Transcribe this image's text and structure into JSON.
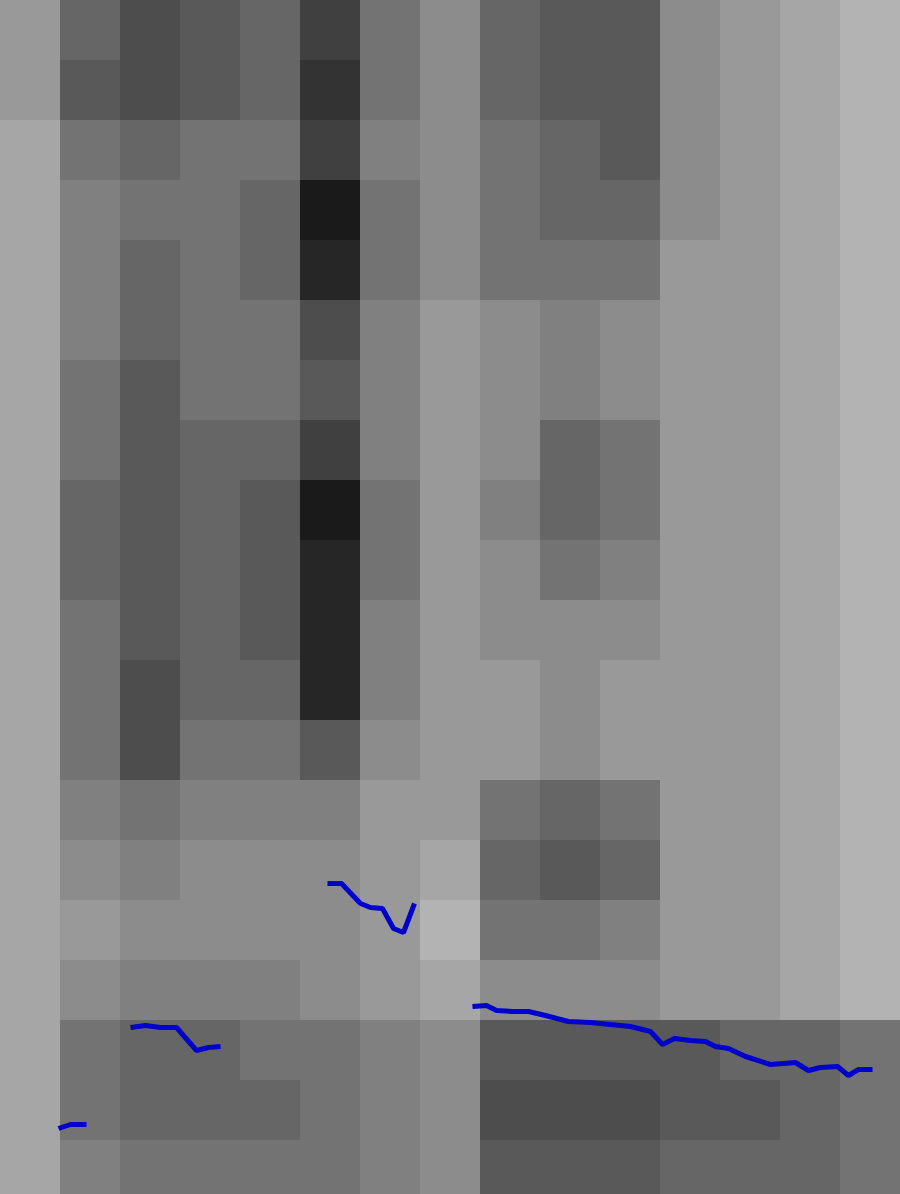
{
  "chart_data": {
    "type": "spectrogram",
    "tick_labels": false,
    "xlim": [
      0,
      900
    ],
    "ylim": [
      0,
      1194
    ],
    "zlim": [
      0,
      100
    ],
    "cell_x": [
      30,
      90,
      150,
      210,
      270,
      330,
      390,
      450,
      510,
      570,
      630,
      690,
      750,
      810,
      870
    ],
    "cell_y": [
      1164,
      1104,
      1044,
      984,
      924,
      864,
      804,
      744,
      684,
      624,
      564,
      504,
      444,
      384,
      324,
      264,
      204,
      144,
      84,
      24
    ],
    "cells": [
      [
        40,
        60,
        70,
        65,
        60,
        75,
        55,
        45,
        60,
        65,
        65,
        45,
        40,
        35,
        30
      ],
      [
        40,
        65,
        70,
        65,
        60,
        80,
        55,
        45,
        60,
        65,
        65,
        45,
        40,
        35,
        30
      ],
      [
        35,
        55,
        60,
        55,
        55,
        75,
        50,
        45,
        55,
        60,
        65,
        45,
        40,
        35,
        30
      ],
      [
        35,
        50,
        55,
        55,
        60,
        90,
        55,
        45,
        55,
        60,
        60,
        45,
        40,
        35,
        30
      ],
      [
        35,
        50,
        60,
        55,
        60,
        85,
        55,
        45,
        55,
        55,
        55,
        40,
        40,
        35,
        30
      ],
      [
        35,
        50,
        60,
        55,
        55,
        70,
        50,
        40,
        45,
        50,
        45,
        40,
        40,
        35,
        30
      ],
      [
        35,
        55,
        65,
        55,
        55,
        65,
        50,
        40,
        45,
        50,
        45,
        40,
        40,
        35,
        30
      ],
      [
        35,
        55,
        65,
        60,
        60,
        75,
        50,
        40,
        45,
        60,
        55,
        40,
        40,
        35,
        30
      ],
      [
        35,
        60,
        65,
        60,
        65,
        90,
        55,
        40,
        50,
        60,
        55,
        40,
        40,
        35,
        30
      ],
      [
        35,
        60,
        65,
        60,
        65,
        85,
        55,
        40,
        45,
        55,
        50,
        40,
        40,
        35,
        30
      ],
      [
        35,
        55,
        65,
        60,
        65,
        85,
        50,
        40,
        45,
        45,
        45,
        40,
        40,
        35,
        30
      ],
      [
        35,
        55,
        70,
        60,
        60,
        85,
        50,
        40,
        40,
        45,
        40,
        40,
        40,
        35,
        30
      ],
      [
        35,
        55,
        70,
        55,
        55,
        65,
        45,
        40,
        40,
        45,
        40,
        40,
        40,
        35,
        30
      ],
      [
        35,
        50,
        55,
        50,
        50,
        50,
        40,
        40,
        55,
        60,
        55,
        40,
        40,
        35,
        30
      ],
      [
        35,
        45,
        50,
        45,
        45,
        45,
        40,
        35,
        60,
        65,
        60,
        40,
        40,
        35,
        30
      ],
      [
        35,
        40,
        45,
        45,
        45,
        45,
        40,
        30,
        55,
        55,
        50,
        40,
        40,
        35,
        30
      ],
      [
        35,
        45,
        50,
        50,
        50,
        45,
        40,
        35,
        45,
        45,
        45,
        40,
        40,
        35,
        30
      ],
      [
        35,
        55,
        60,
        60,
        55,
        55,
        50,
        45,
        65,
        65,
        65,
        65,
        60,
        60,
        55
      ],
      [
        35,
        55,
        60,
        60,
        60,
        55,
        50,
        45,
        70,
        70,
        70,
        65,
        65,
        60,
        55
      ],
      [
        35,
        50,
        55,
        55,
        55,
        55,
        50,
        45,
        65,
        65,
        65,
        60,
        60,
        60,
        55
      ]
    ],
    "series": [
      {
        "type": "line",
        "color": "#0000cc",
        "x": [
          58,
          70,
          86,
          108,
          130,
          145,
          160,
          176,
          196,
          208,
          220,
          274,
          327,
          341,
          360,
          370,
          382,
          393,
          403,
          414,
          443,
          472,
          486,
          496,
          512,
          528,
          545,
          568,
          590,
          610,
          630,
          650,
          662,
          674,
          690,
          705,
          715,
          728,
          745,
          770,
          795,
          808,
          820,
          837,
          848,
          858,
          872
        ],
        "values": [
          66,
          70,
          70,
          null,
          167,
          169,
          167,
          167,
          144,
          147,
          148,
          null,
          311,
          311,
          291,
          287,
          286,
          266,
          262,
          291,
          null,
          188,
          189,
          184,
          183,
          183,
          179,
          173,
          172,
          170,
          168,
          163,
          150,
          156,
          154,
          153,
          148,
          146,
          138,
          130,
          132,
          124,
          127,
          128,
          119,
          125,
          125
        ]
      }
    ]
  }
}
